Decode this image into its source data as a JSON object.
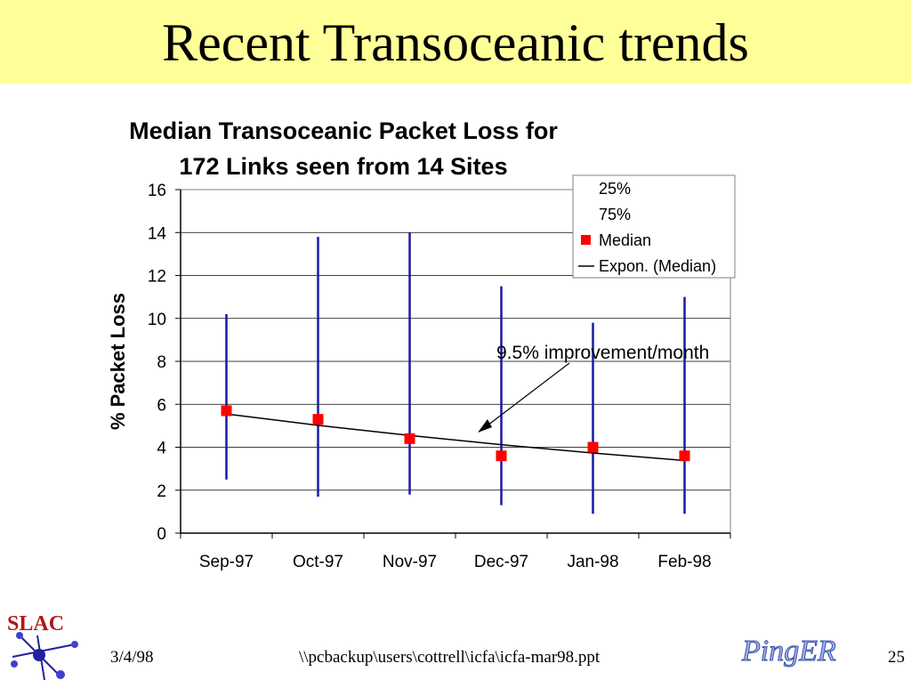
{
  "slide": {
    "title": "Recent Transoceanic trends",
    "footer_date": "3/4/98",
    "footer_path": "\\\\pcbackup\\users\\cottrell\\icfa\\icfa-mar98.ppt",
    "page_number": "25",
    "logo_left_text": "SLAC",
    "logo_right_text": "PingER"
  },
  "colors": {
    "title_band": "#ffff99",
    "median_marker": "#ff0000",
    "range_line": "#1a1aa6",
    "trend_line": "#000000"
  },
  "chart_data": {
    "type": "line",
    "title_line1": "Median Transoceanic Packet Loss for",
    "title_line2": "172 Links seen from 14 Sites",
    "ylabel": "% Packet Loss",
    "xlabel": "",
    "ylim": [
      0,
      16
    ],
    "yticks": [
      "0",
      "2",
      "4",
      "6",
      "8",
      "10",
      "12",
      "14",
      "16"
    ],
    "categories": [
      "Sep-97",
      "Oct-97",
      "Nov-97",
      "Dec-97",
      "Jan-98",
      "Feb-98"
    ],
    "grid": true,
    "legend_position": "top-right",
    "series": [
      {
        "name": "25%",
        "values": [
          2.5,
          1.7,
          1.8,
          1.3,
          0.9,
          0.9
        ]
      },
      {
        "name": "75%",
        "values": [
          10.2,
          13.8,
          14.0,
          11.5,
          9.8,
          11.0
        ]
      },
      {
        "name": "Median",
        "values": [
          5.7,
          5.3,
          4.4,
          3.6,
          4.0,
          3.6
        ]
      },
      {
        "name": "Expon. (Median)",
        "values": [
          5.55,
          5.02,
          4.55,
          4.12,
          3.73,
          3.38
        ]
      }
    ],
    "annotation": "9.5% improvement/month"
  }
}
